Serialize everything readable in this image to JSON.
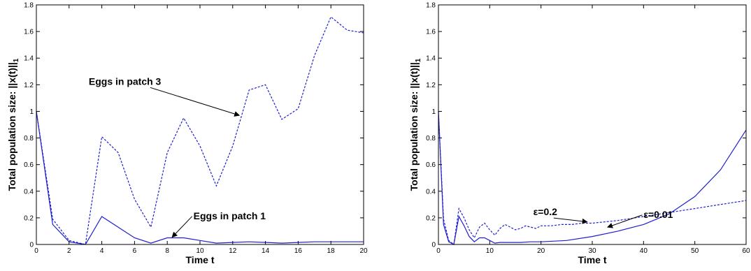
{
  "chart_data": [
    {
      "type": "line",
      "xlabel": "Time t",
      "ylabel": "Total population size: ||x(t)||",
      "ylabel_sub": "1",
      "xlim": [
        0,
        20
      ],
      "ylim": [
        0,
        1.8
      ],
      "xticks": [
        0,
        2,
        4,
        6,
        8,
        10,
        12,
        14,
        16,
        18,
        20
      ],
      "yticks": [
        0,
        0.2,
        0.4,
        0.6,
        0.8,
        1,
        1.2,
        1.4,
        1.6,
        1.8
      ],
      "series": [
        {
          "name": "Eggs in patch 3",
          "style": "dashed",
          "color": "#1f1fd0",
          "x": [
            0,
            1,
            2,
            3,
            4,
            5,
            6,
            7,
            8,
            9,
            10,
            11,
            12,
            13,
            14,
            15,
            16,
            17,
            18,
            19,
            20
          ],
          "y": [
            1.0,
            0.19,
            0.03,
            0.0,
            0.81,
            0.69,
            0.34,
            0.13,
            0.69,
            0.95,
            0.74,
            0.44,
            0.74,
            1.16,
            1.2,
            0.94,
            1.02,
            1.42,
            1.71,
            1.61,
            1.59
          ]
        },
        {
          "name": "Eggs in patch 1",
          "style": "solid",
          "color": "#1f1fd0",
          "x": [
            0,
            1,
            2,
            3,
            4,
            5,
            6,
            7,
            8,
            9,
            10,
            11,
            12,
            13,
            14,
            15,
            16,
            17,
            18,
            19,
            20
          ],
          "y": [
            1.0,
            0.15,
            0.02,
            0.0,
            0.21,
            0.13,
            0.05,
            0.01,
            0.05,
            0.05,
            0.03,
            0.01,
            0.015,
            0.02,
            0.015,
            0.01,
            0.015,
            0.02,
            0.02,
            0.02,
            0.02
          ]
        }
      ],
      "annotations": [
        {
          "text": "Eggs in patch 3",
          "tx": 3.2,
          "ty": 1.2,
          "ax": 12.4,
          "ay": 0.97
        },
        {
          "text": "Eggs in patch 1",
          "tx": 9.6,
          "ty": 0.19,
          "ax": 8.3,
          "ay": 0.055
        }
      ]
    },
    {
      "type": "line",
      "xlabel": "Time t",
      "ylabel": "Total population size: ||x(t)||",
      "ylabel_sub": "1",
      "xlim": [
        0,
        60
      ],
      "ylim": [
        0,
        1.8
      ],
      "xticks": [
        0,
        10,
        20,
        30,
        40,
        50,
        60
      ],
      "yticks": [
        0,
        0.2,
        0.4,
        0.6,
        0.8,
        1,
        1.2,
        1.4,
        1.6,
        1.8
      ],
      "series": [
        {
          "name": "ε=0.2",
          "style": "dashed",
          "color": "#1f1fd0",
          "x": [
            0,
            1,
            2,
            3,
            4,
            5,
            6,
            7,
            8,
            9,
            10,
            11,
            12,
            13,
            14,
            15,
            16,
            17,
            18,
            19,
            20,
            22,
            24,
            26,
            28,
            30,
            35,
            40,
            45,
            50,
            55,
            60
          ],
          "y": [
            1.0,
            0.19,
            0.03,
            0.0,
            0.27,
            0.2,
            0.11,
            0.05,
            0.13,
            0.16,
            0.11,
            0.07,
            0.12,
            0.15,
            0.13,
            0.11,
            0.12,
            0.14,
            0.13,
            0.12,
            0.14,
            0.14,
            0.15,
            0.15,
            0.16,
            0.16,
            0.18,
            0.21,
            0.24,
            0.27,
            0.3,
            0.33
          ]
        },
        {
          "name": "ε=0.01",
          "style": "solid",
          "color": "#1f1fd0",
          "x": [
            0,
            1,
            2,
            3,
            4,
            5,
            6,
            7,
            8,
            9,
            10,
            11,
            12,
            14,
            16,
            18,
            20,
            25,
            30,
            35,
            40,
            45,
            50,
            55,
            60
          ],
          "y": [
            1.0,
            0.15,
            0.02,
            0.0,
            0.21,
            0.14,
            0.06,
            0.02,
            0.05,
            0.05,
            0.03,
            0.01,
            0.015,
            0.015,
            0.015,
            0.02,
            0.02,
            0.03,
            0.06,
            0.1,
            0.15,
            0.23,
            0.36,
            0.56,
            0.86
          ]
        }
      ],
      "annotations": [
        {
          "text": "ε=0.2",
          "tx": 18.5,
          "ty": 0.22,
          "ax": 29.0,
          "ay": 0.17
        },
        {
          "text": "ε=0.01",
          "tx": 40.0,
          "ty": 0.2,
          "ax": 33.0,
          "ay": 0.13
        }
      ]
    }
  ]
}
